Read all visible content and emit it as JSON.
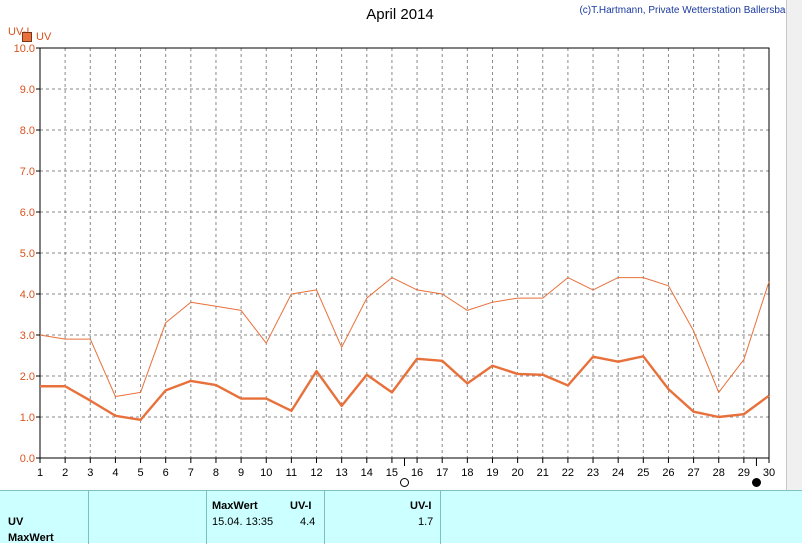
{
  "title": "April 2014",
  "credit": "(c)T.Hartmann, Private Wetterstation Ballersbach",
  "y_axis_label": "UV-I",
  "legend": {
    "label": "UV",
    "color": "#e8703a"
  },
  "chart_data": {
    "type": "line",
    "x": [
      1,
      2,
      3,
      4,
      5,
      6,
      7,
      8,
      9,
      10,
      11,
      12,
      13,
      14,
      15,
      16,
      17,
      18,
      19,
      20,
      21,
      22,
      23,
      24,
      25,
      26,
      27,
      28,
      29,
      30
    ],
    "ylim": [
      0,
      10
    ],
    "y_ticks": [
      "0.0",
      "1.0",
      "2.0",
      "3.0",
      "4.0",
      "5.0",
      "6.0",
      "7.0",
      "8.0",
      "9.0",
      "10.0"
    ],
    "grid": true,
    "series": [
      {
        "name": "UV",
        "role": "max",
        "color": "#e8703a",
        "values": [
          3.0,
          2.9,
          2.9,
          1.5,
          1.6,
          3.3,
          3.8,
          3.7,
          3.6,
          2.8,
          4.0,
          4.1,
          2.7,
          3.9,
          4.4,
          4.1,
          4.0,
          3.6,
          3.8,
          3.9,
          3.9,
          4.4,
          4.1,
          4.4,
          4.4,
          4.2,
          3.1,
          1.6,
          2.4,
          4.3
        ]
      },
      {
        "name": "UV",
        "role": "mean",
        "color": "#e8703a",
        "values": [
          1.75,
          1.75,
          1.4,
          1.03,
          0.93,
          1.65,
          1.88,
          1.78,
          1.45,
          1.45,
          1.15,
          2.12,
          1.27,
          2.03,
          1.6,
          2.42,
          2.37,
          1.82,
          2.25,
          2.05,
          2.03,
          1.77,
          2.47,
          2.35,
          2.48,
          1.68,
          1.13,
          1.0,
          1.07,
          1.52
        ]
      }
    ]
  },
  "markers": {
    "open_circle_day": 15.5,
    "filled_circle_day": 29.5
  },
  "panel": {
    "row1_label": "UV",
    "row2_label": "MaxWert",
    "max_header": "MaxWert",
    "uvi_header": "UV-I",
    "max_datetime": "15.04.  13:35",
    "max_value": "4.4",
    "uvi_header2": "UV-I",
    "avg_value": "1.7"
  }
}
